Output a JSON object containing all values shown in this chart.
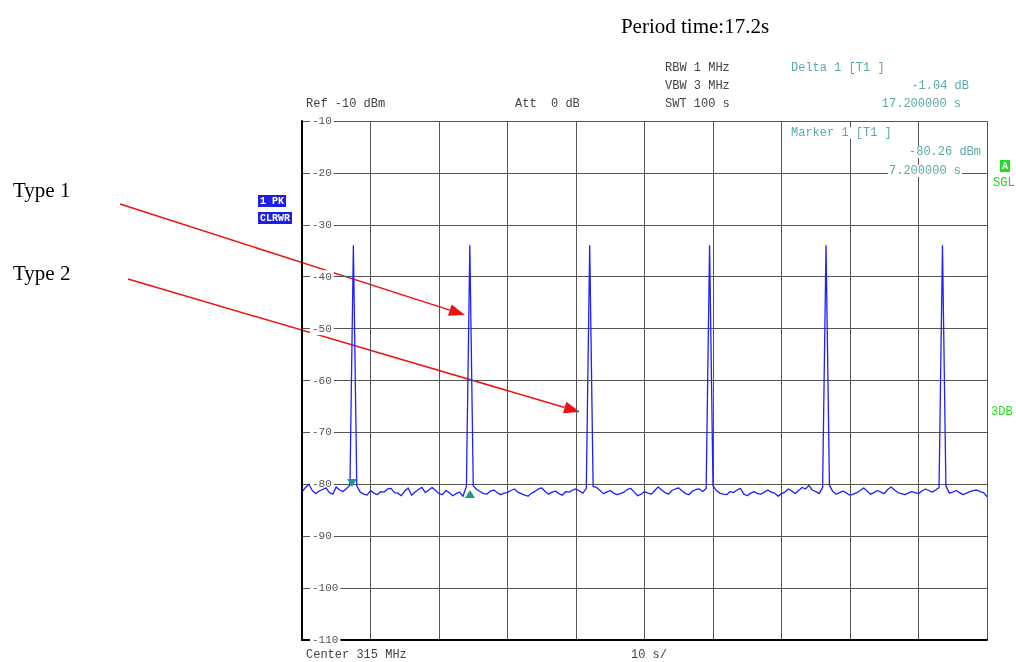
{
  "chart_data": {
    "type": "line",
    "title": "Period time:17.2s",
    "categories": [
      null,
      null,
      null,
      null,
      null,
      null,
      null,
      null,
      null,
      null,
      null,
      null,
      null,
      null,
      null,
      null,
      null,
      null,
      null,
      null,
      null,
      null,
      null,
      null,
      null,
      null,
      null,
      null,
      null,
      null,
      null,
      null,
      null,
      null,
      null,
      null,
      null,
      null,
      null,
      null,
      null,
      null,
      null,
      null,
      null,
      null,
      null,
      null,
      null,
      null,
      null,
      null,
      null,
      null,
      null,
      null,
      null,
      null,
      null,
      null,
      null,
      null,
      null,
      null,
      null,
      null,
      null,
      null,
      null,
      null,
      null,
      null,
      null,
      null,
      null,
      null,
      null,
      null,
      null,
      null,
      null,
      null,
      null,
      null,
      null,
      null,
      null,
      null,
      null,
      null,
      null,
      null,
      null,
      null,
      null,
      null,
      null,
      null,
      null,
      null,
      null,
      null,
      null,
      null,
      null,
      null,
      null,
      null,
      null,
      null,
      null,
      null,
      null,
      null,
      null,
      null,
      null,
      null,
      null,
      null,
      null,
      null,
      null,
      null,
      null,
      null,
      null,
      null,
      null,
      null,
      null,
      null,
      null,
      null,
      null,
      null,
      null,
      null,
      null,
      null,
      null,
      null,
      null,
      null,
      null,
      null,
      null,
      null,
      null,
      null,
      null,
      null,
      null,
      null,
      null,
      null,
      null,
      null,
      null,
      null,
      null,
      null,
      null,
      null,
      null,
      null,
      null,
      null,
      null,
      null,
      null,
      null,
      null,
      null,
      null,
      null,
      null,
      null,
      null,
      null,
      null,
      null,
      null,
      null,
      null,
      null,
      null,
      null,
      null,
      null,
      null,
      null,
      null,
      null,
      null,
      null,
      null,
      null,
      null,
      null,
      null
    ],
    "ylim": [
      -110,
      -10
    ],
    "yticks": [
      -10,
      -20,
      -30,
      -40,
      -50,
      -60,
      -70,
      -80,
      -90,
      -100,
      -110
    ],
    "tick_labels": "y",
    "grid": true,
    "series": [
      {
        "color": "#1f1fff",
        "values": [
          -81.5,
          -80.6,
          -80,
          -81.2,
          -81.8,
          -81.3,
          -81,
          -80.7,
          -81.6,
          -81.9,
          -80.5,
          -81.1,
          -81.4,
          -80.8,
          -80.2,
          -34,
          -80.3,
          -81.5,
          -81.9,
          -82.1,
          -81.2,
          -81.7,
          -82,
          -81.4,
          -81.5,
          -80.9,
          -80.8,
          -81.6,
          -81.7,
          -82.2,
          -81.3,
          -80.7,
          -82.1,
          -81.5,
          -81,
          -80.6,
          -81.6,
          -81.1,
          -80.6,
          -81.2,
          -81.8,
          -82,
          -81.2,
          -81.6,
          -82.2,
          -81.8,
          -81.5,
          -82.3,
          -80.4,
          -34,
          -80.3,
          -81,
          -81.4,
          -81.8,
          -81.9,
          -81.3,
          -81.1,
          -81.6,
          -82,
          -81.7,
          -81.6,
          -81.2,
          -80.9,
          -81.5,
          -81.8,
          -82.1,
          -82.3,
          -81.7,
          -81.4,
          -80.9,
          -80.7,
          -81.4,
          -81.9,
          -81.5,
          -81.3,
          -81.8,
          -82.1,
          -81.4,
          -81.5,
          -81.1,
          -80.9,
          -81.3,
          -81.7,
          -80.8,
          -34,
          -80.4,
          -80.6,
          -81.2,
          -81.8,
          -81.5,
          -81.2,
          -81.7,
          -82,
          -81.8,
          -81.5,
          -81,
          -80.8,
          -81.5,
          -82.2,
          -81.9,
          -81.4,
          -81.7,
          -81.9,
          -81.2,
          -80.5,
          -81.1,
          -81.6,
          -81.9,
          -81.2,
          -80.9,
          -80.7,
          -81.3,
          -81.8,
          -82,
          -81.3,
          -81,
          -80.9,
          -81.4,
          -80.8,
          -34,
          -80.3,
          -81.2,
          -81.7,
          -81.9,
          -82,
          -81.4,
          -81.6,
          -81.1,
          -80.8,
          -81.9,
          -82.2,
          -81.7,
          -81.4,
          -81.8,
          -81.9,
          -81.5,
          -81.1,
          -81.5,
          -81.7,
          -82.3,
          -81.8,
          -81.5,
          -80.9,
          -81.3,
          -81.8,
          -81.2,
          -80.6,
          -80.9,
          -80.2,
          -81.1,
          -81.4,
          -81.8,
          -80.6,
          -34,
          -80.2,
          -81.4,
          -81.9,
          -81.6,
          -81.3,
          -81.7,
          -82.1,
          -81.9,
          -81.6,
          -81.2,
          -80.7,
          -81.3,
          -81.9,
          -81.6,
          -81.2,
          -81.5,
          -81.8,
          -81,
          -80.5,
          -81.1,
          -81.6,
          -81.8,
          -82,
          -81.7,
          -81.4,
          -81.6,
          -81.8,
          -81.3,
          -80.9,
          -81.2,
          -81.5,
          -81.1,
          -80.6,
          -34,
          -80.3,
          -81.7,
          -81.5,
          -81.2,
          -81.6,
          -82,
          -81.7,
          -81.4,
          -81.2,
          -81.1,
          -81.4,
          -81.6,
          -82.4
        ]
      }
    ],
    "annotations": [
      "RBW 1 MHz",
      "VBW 3 MHz",
      "SWT 100 s",
      "Ref -10 dBm",
      "Att  0 dB",
      "Delta 1 [T1 ]",
      "-1.04 dB",
      "17.200000 s",
      "Marker 1 [T1 ]",
      "-80.26 dBm",
      "7.200000 s",
      "1 PK",
      "CLRWR",
      "A",
      "SGL",
      "3DB",
      "Center 315 MHz",
      "10 s/",
      "Type 1",
      "Type 2"
    ]
  }
}
